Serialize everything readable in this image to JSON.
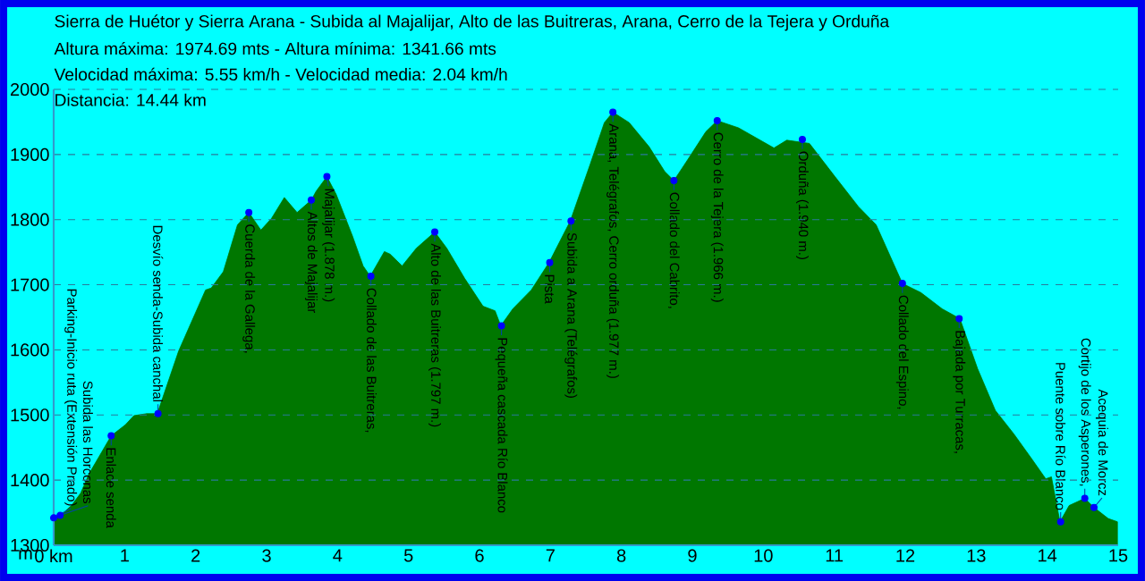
{
  "chart_data": {
    "type": "area",
    "title": "Sierra de Huétor y Sierra Arana - Subida al Majalijar, Alto de las Buitreras, Arana, Cerro de la Tejera y Orduña",
    "ylabel": "m",
    "xlim": [
      0,
      15
    ],
    "ylim": [
      1300,
      2000
    ],
    "xticks": [
      {
        "value": 0,
        "label": "0 km"
      },
      1,
      2,
      3,
      4,
      5,
      6,
      7,
      8,
      9,
      10,
      11,
      12,
      13,
      14,
      15
    ],
    "yticks": [
      1300,
      1400,
      1500,
      1600,
      1700,
      1800,
      1900,
      2000
    ],
    "grid": "y",
    "series": [
      {
        "color": "#007700",
        "marker": "none",
        "x": [
          0,
          0.1,
          0.25,
          0.38,
          0.5,
          0.81,
          1.01,
          1.13,
          1.31,
          1.46,
          1.76,
          2.14,
          2.22,
          2.39,
          2.59,
          2.75,
          2.92,
          3.07,
          3.25,
          3.43,
          3.63,
          3.7,
          3.85,
          3.98,
          4.21,
          4.36,
          4.46,
          4.66,
          4.74,
          4.91,
          5.11,
          5.37,
          5.54,
          5.79,
          6.05,
          6.22,
          6.3,
          6.47,
          6.73,
          6.98,
          7.28,
          7.56,
          7.76,
          7.88,
          8.11,
          8.39,
          8.61,
          8.74,
          8.94,
          9.19,
          9.35,
          9.65,
          10.15,
          10.33,
          10.65,
          11.01,
          11.34,
          11.59,
          11.96,
          12.22,
          12.52,
          12.77,
          13.02,
          13.27,
          13.53,
          13.78,
          13.98,
          14.06,
          14.18,
          14.31,
          14.53,
          14.66,
          14.86,
          14.99
        ],
        "values": [
          1342,
          1346,
          1361,
          1380,
          1410,
          1468,
          1485,
          1499,
          1502,
          1502,
          1598,
          1692,
          1695,
          1720,
          1792,
          1811,
          1784,
          1802,
          1834,
          1811,
          1830,
          1844,
          1866,
          1839,
          1775,
          1729,
          1713,
          1751,
          1747,
          1729,
          1756,
          1781,
          1756,
          1710,
          1667,
          1660,
          1637,
          1663,
          1692,
          1734,
          1798,
          1885,
          1949,
          1965,
          1949,
          1912,
          1874,
          1860,
          1893,
          1935,
          1952,
          1941,
          1910,
          1922,
          1917,
          1866,
          1820,
          1792,
          1702,
          1688,
          1663,
          1648,
          1571,
          1507,
          1471,
          1433,
          1402,
          1405,
          1336,
          1361,
          1372,
          1358,
          1341,
          1336
        ]
      },
      {
        "type": "scatter",
        "color": "#0000ff",
        "marker": "circle",
        "x": [
          0,
          0.09,
          0.81,
          1.47,
          2.75,
          3.63,
          3.85,
          4.47,
          5.37,
          6.31,
          6.99,
          7.29,
          7.88,
          8.74,
          9.35,
          10.55,
          11.96,
          12.76,
          14.19,
          14.53,
          14.66
        ],
        "values": [
          1342,
          1346,
          1468,
          1502,
          1811,
          1830,
          1866,
          1713,
          1781,
          1637,
          1734,
          1798,
          1965,
          1860,
          1952,
          1923,
          1702,
          1648,
          1336,
          1372,
          1358
        ]
      }
    ],
    "annotations": [
      "Altura máxima: 1974.69 mts - Altura mínima: 1341.66 mts",
      "Velocidad máxima: 5.55 km/h - Velocidad media: 2.04 km/h",
      "Distancia: 14.44 km",
      {
        "text": "Parking-Inicio ruta (Extensión Prado)",
        "x": 0,
        "y": 1342
      },
      {
        "text": "Subida las Horconas",
        "x": 0.09,
        "y": 1346
      },
      {
        "text": "Enlace senda",
        "x": 0.81,
        "y": 1468
      },
      {
        "text": "Desvío senda-Subida canchal",
        "x": 1.47,
        "y": 1502
      },
      {
        "text": "Cuerda de la Gallega,",
        "x": 2.75,
        "y": 1811
      },
      {
        "text": "Altos de Majalijar",
        "x": 3.63,
        "y": 1830
      },
      {
        "text": "Majalijar (1.878 m.)",
        "x": 3.85,
        "y": 1866
      },
      {
        "text": "Collado de las Buitreras,",
        "x": 4.47,
        "y": 1713
      },
      {
        "text": "Alto de las Buitreras (1.797 m.)",
        "x": 5.37,
        "y": 1781
      },
      {
        "text": "Pequeña cascada Río Blanco",
        "x": 6.31,
        "y": 1637
      },
      {
        "text": "Pista",
        "x": 6.99,
        "y": 1734
      },
      {
        "text": "Subida a Arana (Telégrafos)",
        "x": 7.29,
        "y": 1798
      },
      {
        "text": "Arana, Telégrafos, Cerro orduña (1.977 m.)",
        "x": 7.88,
        "y": 1965
      },
      {
        "text": "Collado del Cabrito,",
        "x": 8.74,
        "y": 1860
      },
      {
        "text": "Cerro de la Tejera (1.966 m.)",
        "x": 9.35,
        "y": 1952
      },
      {
        "text": "Orduña (1.940 m.)",
        "x": 10.55,
        "y": 1923
      },
      {
        "text": "Collado del Espino,",
        "x": 11.96,
        "y": 1702
      },
      {
        "text": "Bajada por Turracas,",
        "x": 12.76,
        "y": 1648
      },
      {
        "text": "Puente sobre Río Blanco",
        "x": 14.19,
        "y": 1336
      },
      {
        "text": "Cortijo de los Asperones,",
        "x": 14.53,
        "y": 1372
      },
      {
        "text": "Acequia de Morcz",
        "x": 14.66,
        "y": 1358
      }
    ]
  }
}
